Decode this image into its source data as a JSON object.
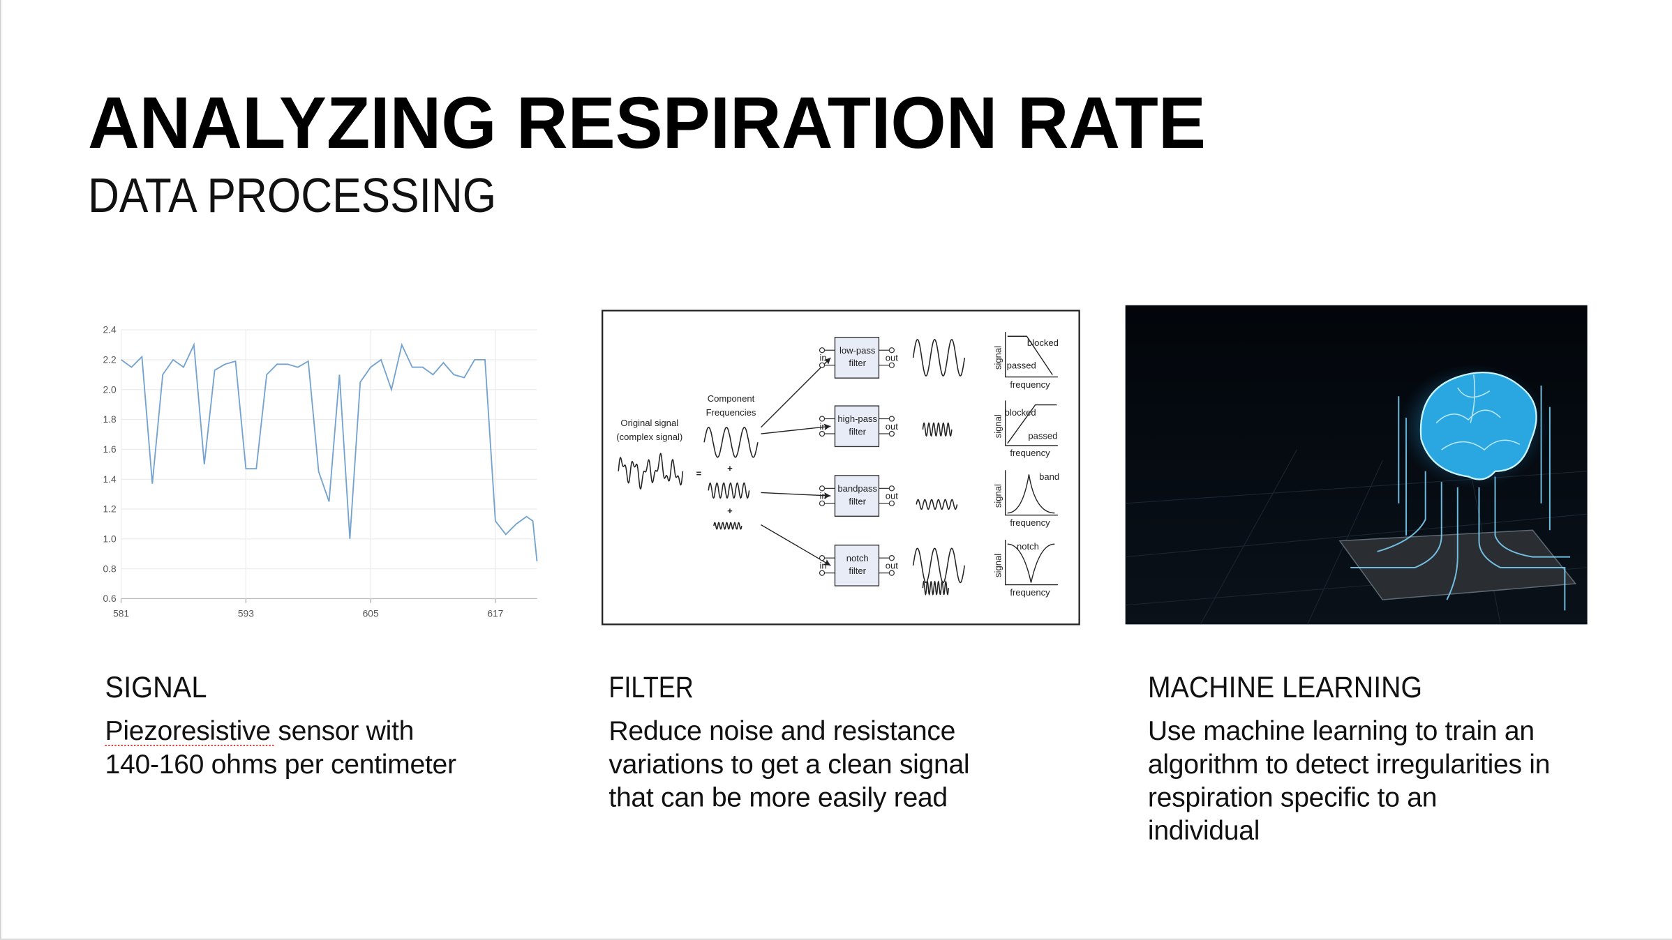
{
  "slide": {
    "title": "ANALYZING RESPIRATION RATE",
    "subtitle": "DATA PROCESSING"
  },
  "chart_data": {
    "type": "line",
    "x": [
      581,
      582,
      583,
      584,
      585,
      586,
      587,
      588,
      589,
      590,
      591,
      592,
      593,
      594,
      595,
      596,
      597,
      598,
      599,
      600,
      601,
      602,
      603,
      604,
      605,
      606,
      607,
      608,
      609,
      610,
      611,
      612,
      613,
      614,
      615,
      616,
      617,
      618,
      619,
      620,
      620.6,
      621
    ],
    "series": [
      {
        "color": "#74a3cf",
        "values": [
          2.2,
          2.15,
          2.22,
          1.37,
          2.1,
          2.2,
          2.15,
          2.3,
          1.5,
          2.13,
          2.17,
          2.19,
          1.47,
          1.47,
          2.1,
          2.17,
          2.17,
          2.15,
          2.19,
          1.45,
          1.25,
          2.1,
          1.0,
          2.05,
          2.15,
          2.2,
          2.0,
          2.3,
          2.15,
          2.15,
          2.1,
          2.18,
          2.1,
          2.08,
          2.2,
          2.2,
          1.12,
          1.03,
          1.1,
          1.15,
          1.12,
          0.85
        ]
      }
    ],
    "xlim": [
      581,
      621
    ],
    "ylim": [
      0.6,
      2.4
    ],
    "xticks": [
      581,
      593,
      605,
      617
    ],
    "yticks": [
      0.6,
      0.8,
      {
        "value": 1,
        "label": "1.0"
      },
      1.2,
      1.4,
      1.6,
      1.8,
      {
        "value": 2,
        "label": "2.0"
      },
      2.2,
      2.4
    ],
    "grid": true
  },
  "diagram": {
    "original": [
      "Original signal",
      "(complex signal)"
    ],
    "components": [
      "Component",
      "Frequencies"
    ],
    "operators": [
      "=",
      "+",
      "+"
    ],
    "filters": [
      {
        "name": [
          "low-pass",
          "filter"
        ],
        "in": "in",
        "out": "out",
        "axis_y": "signal",
        "axis_x": "frequency",
        "labels": [
          "blocked",
          "passed"
        ]
      },
      {
        "name": [
          "high-pass",
          "filter"
        ],
        "in": "in",
        "out": "out",
        "axis_y": "signal",
        "axis_x": "frequency",
        "labels": [
          "blocked",
          "passed"
        ]
      },
      {
        "name": [
          "bandpass",
          "filter"
        ],
        "in": "in",
        "out": "out",
        "axis_y": "signal",
        "axis_x": "frequency",
        "labels": [
          "band"
        ]
      },
      {
        "name": [
          "notch",
          "filter"
        ],
        "in": "in",
        "out": "out",
        "axis_y": "signal",
        "axis_x": "frequency",
        "labels": [
          "notch"
        ]
      }
    ]
  },
  "columns": [
    {
      "heading": "SIGNAL",
      "lines": [
        "Piezoresistive sensor with",
        "140-160 ohms per centimeter"
      ]
    },
    {
      "heading": "FILTER",
      "lines": [
        "Reduce noise and resistance",
        "variations to get a clean signal",
        "that can be more easily read"
      ]
    },
    {
      "heading": "MACHINE LEARNING",
      "lines": [
        "Use machine learning to train an",
        "algorithm to detect irregularities in",
        "respiration specific to an",
        "individual"
      ]
    }
  ]
}
